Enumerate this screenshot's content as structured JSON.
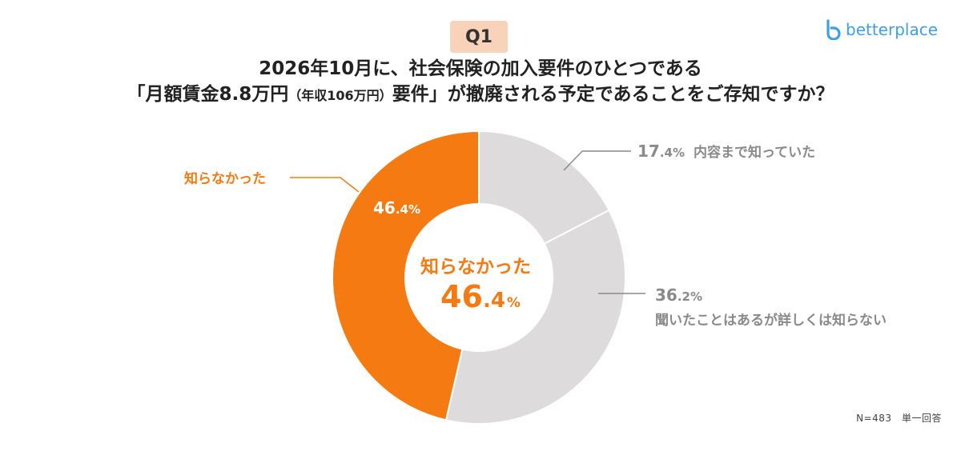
{
  "badge": "Q1",
  "title": {
    "line1": "2026年10月に、社会保険の加入要件のひとつである",
    "line2_a": "「月額賃金8.8万円",
    "line2_small": "（年収106万円）",
    "line2_b": "要件」が撤廃される予定であることをご存知ですか？"
  },
  "logo": {
    "text": "betterplace",
    "icon": "betterplace-logo-icon"
  },
  "footnote": "N=483　単一回答",
  "center": {
    "label": "知らなかった",
    "value_int": "46",
    "value_dec": ".4",
    "unit": "%"
  },
  "colors": {
    "accent": "#f57a11",
    "gray": "#dddbdb",
    "label_gray": "#8a8a8a"
  },
  "chart_data": {
    "type": "pie",
    "donut": true,
    "slices": [
      {
        "label": "内容まで知っていた",
        "value": 17.4,
        "value_text_int": "17",
        "value_text_dec": ".4",
        "color": "#dddbdb"
      },
      {
        "label": "聞いたことはあるが詳しくは知らない",
        "value": 36.2,
        "value_text_int": "36",
        "value_text_dec": ".2",
        "color": "#dddbdb"
      },
      {
        "label": "知らなかった",
        "value": 46.4,
        "value_text_int": "46",
        "value_text_dec": ".4",
        "color": "#f57a11"
      }
    ]
  }
}
